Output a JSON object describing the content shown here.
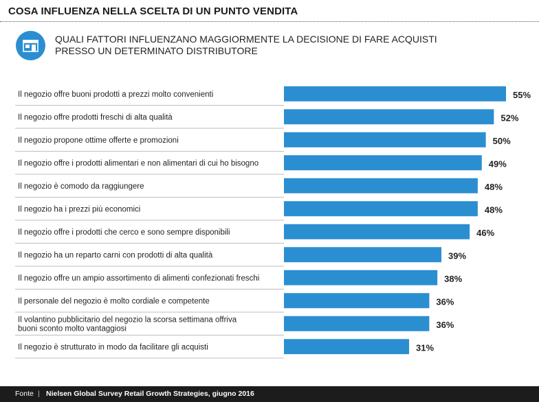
{
  "header": {
    "title": "COSA INFLUENZA NELLA SCELTA DI UN PUNTO VENDITA",
    "subtitle": "QUALI FATTORI INFLUENZANO MAGGIORMENTE  LA DECISIONE DI FARE ACQUISTI PRESSO UN DETERMINATO DISTRIBUTORE",
    "icon": "store-icon"
  },
  "colors": {
    "bar": "#2b8ed1",
    "icon_bg": "#2b8ed1",
    "footer_bg": "#1c1c1c"
  },
  "chart_data": {
    "type": "bar",
    "orientation": "horizontal",
    "categories": [
      [
        "Il negozio offre buoni prodotti a prezzi molto convenienti"
      ],
      [
        "Il negozio offre prodotti freschi di alta qualità"
      ],
      [
        "Il negozio propone ottime offerte e promozioni"
      ],
      [
        "Il negozio offre i prodotti alimentari e non alimentari di cui ho bisogno"
      ],
      [
        "Il negozio è comodo da raggiungere"
      ],
      [
        "Il negozio ha i prezzi più economici"
      ],
      [
        "Il negozio offre i prodotti che cerco e sono sempre disponibili"
      ],
      [
        "Il negozio ha un reparto carni con prodotti di alta qualità"
      ],
      [
        "Il negozio offre un ampio assortimento di alimenti confezionati freschi"
      ],
      [
        "Il personale del negozio è molto cordiale e competente"
      ],
      [
        "Il volantino pubblicitario del negozio la scorsa settimana offriva",
        "buoni sconto molto vantaggiosi"
      ],
      [
        "Il negozio è strutturato in modo da facilitare gli acquisti"
      ]
    ],
    "values": [
      55,
      52,
      50,
      49,
      48,
      48,
      46,
      39,
      38,
      36,
      36,
      31
    ],
    "value_labels": [
      "55%",
      "52%",
      "50%",
      "49%",
      "48%",
      "48%",
      "46%",
      "39%",
      "38%",
      "36%",
      "36%",
      "31%"
    ],
    "unit": "%",
    "xlim": [
      0,
      55
    ],
    "grid": false
  },
  "footer": {
    "source_label": "Fonte",
    "separator": "|",
    "source": "Nielsen Global Survey Retail Growth Strategies, giugno 2016"
  }
}
